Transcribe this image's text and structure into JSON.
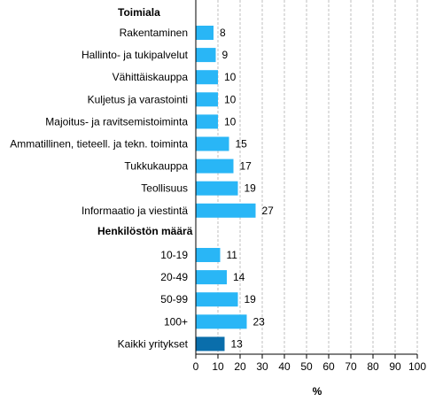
{
  "chart_data": {
    "type": "bar",
    "orientation": "horizontal",
    "groups": [
      {
        "heading": "Toimiala",
        "categories": [
          "Rakentaminen",
          "Hallinto- ja tukipalvelut",
          "Vähittäiskauppa",
          "Kuljetus ja varastointi",
          "Majoitus- ja ravitsemistoiminta",
          "Ammatillinen, tieteell. ja tekn. toiminta",
          "Tukkukauppa",
          "Teollisuus",
          "Informaatio ja viestintä"
        ],
        "values": [
          8,
          9,
          10,
          10,
          10,
          15,
          17,
          19,
          27
        ]
      },
      {
        "heading": "Henkilöstön määrä",
        "categories": [
          "10-19",
          "20-49",
          "50-99",
          "100+"
        ],
        "values": [
          11,
          14,
          19,
          23
        ]
      },
      {
        "heading": "",
        "categories": [
          "Kaikki yritykset"
        ],
        "values": [
          13
        ],
        "highlight": true
      }
    ],
    "xlabel": "%",
    "xlim": [
      0,
      100
    ],
    "xticks": [
      0,
      10,
      20,
      30,
      40,
      50,
      60,
      70,
      80,
      90,
      100
    ],
    "grid": "vertical dashed",
    "colors": {
      "bar": "#29b6f6",
      "highlight": "#0a6eab",
      "grid": "#bfbfbf",
      "axis": "#000000",
      "text": "#000000"
    }
  }
}
